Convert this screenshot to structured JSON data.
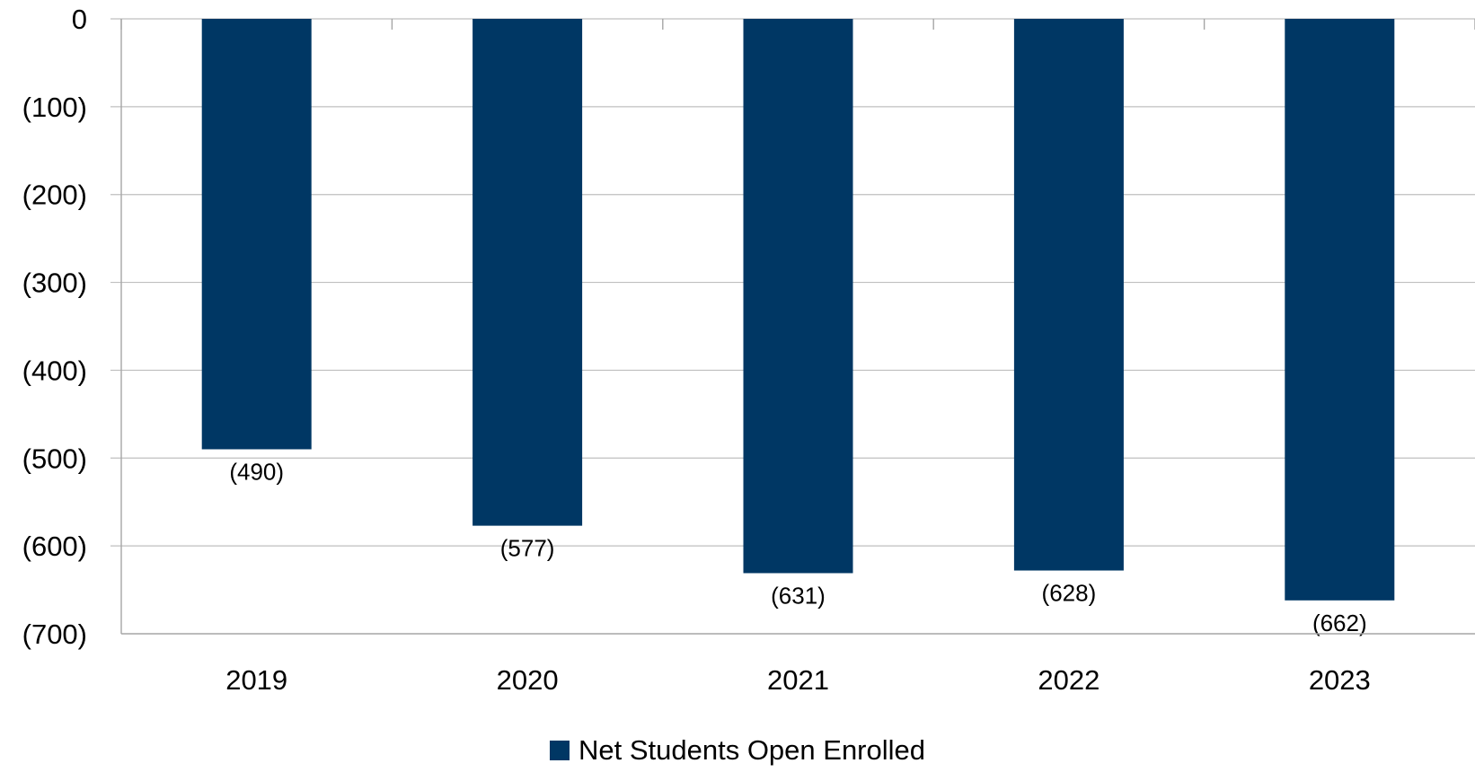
{
  "chart_data": {
    "type": "bar",
    "categories": [
      "2019",
      "2020",
      "2021",
      "2022",
      "2023"
    ],
    "series": [
      {
        "name": "Net Students Open Enrolled",
        "values": [
          -490,
          -577,
          -631,
          -628,
          -662
        ],
        "color": "#003764"
      }
    ],
    "data_labels": [
      "(490)",
      "(577)",
      "(631)",
      "(628)",
      "(662)"
    ],
    "y_ticks": [
      0,
      -100,
      -200,
      -300,
      -400,
      -500,
      -600,
      -700
    ],
    "y_tick_labels": [
      "0",
      "(100)",
      "(200)",
      "(300)",
      "(400)",
      "(500)",
      "(600)",
      "(700)"
    ],
    "ylim": [
      -700,
      0
    ],
    "grid": true,
    "legend_position": "bottom",
    "title": "",
    "xlabel": "",
    "ylabel": ""
  },
  "legend": {
    "label": "Net Students Open Enrolled",
    "color": "#003764"
  }
}
